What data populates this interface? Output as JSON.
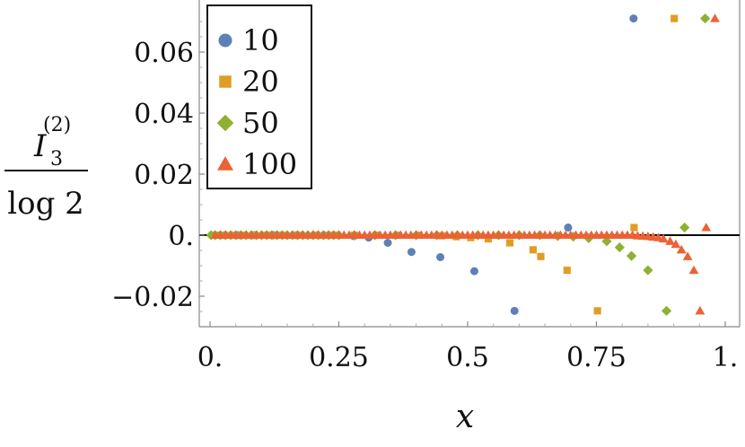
{
  "chart_data": {
    "type": "scatter",
    "xlabel": "x",
    "ylabel": {
      "numerator": "I",
      "numerator_subscript": "3",
      "numerator_superscript": "(2)",
      "denominator": "log 2"
    },
    "xlim": [
      0,
      1
    ],
    "ylim": [
      -0.03,
      0.075
    ],
    "x_ticks": [
      {
        "value": 0,
        "label": "0."
      },
      {
        "value": 0.25,
        "label": "0.25"
      },
      {
        "value": 0.5,
        "label": "0.5"
      },
      {
        "value": 0.75,
        "label": "0.75"
      },
      {
        "value": 1,
        "label": "1."
      }
    ],
    "y_ticks": [
      {
        "value": -0.02,
        "label": "−0.02"
      },
      {
        "value": 0,
        "label": "0."
      },
      {
        "value": 0.02,
        "label": "0.02"
      },
      {
        "value": 0.04,
        "label": "0.04"
      },
      {
        "value": 0.06,
        "label": "0.06"
      }
    ],
    "grid": false,
    "zero_line": true,
    "legend_position": "top-left",
    "series": [
      {
        "name": "10",
        "marker": "circle",
        "color": "#5e81b5",
        "points": [
          [
            0.01,
            0.0
          ],
          [
            0.029,
            0.0
          ],
          [
            0.054,
            0.0
          ],
          [
            0.085,
            0.0
          ],
          [
            0.123,
            0.0
          ],
          [
            0.168,
            0.0
          ],
          [
            0.221,
            0.0
          ],
          [
            0.279,
            -0.0003
          ],
          [
            0.308,
            -0.0008
          ],
          [
            0.345,
            -0.0025
          ],
          [
            0.391,
            -0.0055
          ],
          [
            0.447,
            -0.0072
          ],
          [
            0.513,
            -0.0118
          ],
          [
            0.591,
            -0.0248
          ],
          [
            0.695,
            0.0025
          ],
          [
            0.822,
            0.071
          ]
        ]
      },
      {
        "name": "20",
        "marker": "square",
        "color": "#e19c24",
        "points": [
          [
            0.005,
            0.0
          ],
          [
            0.015,
            0.0
          ],
          [
            0.028,
            0.0
          ],
          [
            0.045,
            0.0
          ],
          [
            0.063,
            0.0
          ],
          [
            0.085,
            0.0
          ],
          [
            0.11,
            0.0
          ],
          [
            0.14,
            0.0
          ],
          [
            0.172,
            0.0
          ],
          [
            0.205,
            0.0
          ],
          [
            0.24,
            0.0
          ],
          [
            0.28,
            0.0
          ],
          [
            0.322,
            0.0
          ],
          [
            0.365,
            0.0
          ],
          [
            0.405,
            0.0
          ],
          [
            0.45,
            -0.0002
          ],
          [
            0.478,
            -0.0005
          ],
          [
            0.506,
            -0.0008
          ],
          [
            0.54,
            -0.0012
          ],
          [
            0.582,
            -0.0025
          ],
          [
            0.627,
            -0.0048
          ],
          [
            0.642,
            -0.007
          ],
          [
            0.693,
            -0.0115
          ],
          [
            0.752,
            -0.0248
          ],
          [
            0.823,
            0.0025
          ],
          [
            0.901,
            0.071
          ]
        ]
      },
      {
        "name": "50",
        "marker": "diamond",
        "color": "#8fb032",
        "points": [
          [
            0.002,
            0.0
          ],
          [
            0.01,
            0.0
          ],
          [
            0.02,
            0.0
          ],
          [
            0.03,
            0.0
          ],
          [
            0.04,
            0.0
          ],
          [
            0.05,
            0.0
          ],
          [
            0.06,
            0.0
          ],
          [
            0.07,
            0.0
          ],
          [
            0.08,
            0.0
          ],
          [
            0.09,
            0.0
          ],
          [
            0.1,
            0.0
          ],
          [
            0.11,
            0.0
          ],
          [
            0.12,
            0.0
          ],
          [
            0.13,
            0.0
          ],
          [
            0.14,
            0.0
          ],
          [
            0.15,
            0.0
          ],
          [
            0.16,
            0.0
          ],
          [
            0.17,
            0.0
          ],
          [
            0.18,
            0.0
          ],
          [
            0.19,
            0.0
          ],
          [
            0.2,
            0.0
          ],
          [
            0.21,
            0.0
          ],
          [
            0.22,
            0.0
          ],
          [
            0.23,
            0.0
          ],
          [
            0.24,
            0.0
          ],
          [
            0.25,
            0.0
          ],
          [
            0.28,
            0.0
          ],
          [
            0.32,
            0.0
          ],
          [
            0.36,
            0.0
          ],
          [
            0.4,
            0.0
          ],
          [
            0.44,
            0.0
          ],
          [
            0.48,
            0.0
          ],
          [
            0.52,
            0.0
          ],
          [
            0.56,
            0.0
          ],
          [
            0.6,
            0.0
          ],
          [
            0.64,
            0.0
          ],
          [
            0.675,
            -0.0003
          ],
          [
            0.705,
            -0.0005
          ],
          [
            0.735,
            -0.001
          ],
          [
            0.77,
            -0.002
          ],
          [
            0.795,
            -0.004
          ],
          [
            0.818,
            -0.0068
          ],
          [
            0.85,
            -0.0115
          ],
          [
            0.886,
            -0.0248
          ],
          [
            0.921,
            0.0025
          ],
          [
            0.961,
            0.071
          ]
        ]
      },
      {
        "name": "100",
        "marker": "triangle",
        "color": "#eb6235",
        "points": [
          [
            0.01,
            0.0
          ],
          [
            0.02,
            0.0
          ],
          [
            0.03,
            0.0
          ],
          [
            0.04,
            0.0
          ],
          [
            0.05,
            0.0
          ],
          [
            0.06,
            0.0
          ],
          [
            0.07,
            0.0
          ],
          [
            0.08,
            0.0
          ],
          [
            0.09,
            0.0
          ],
          [
            0.1,
            0.0
          ],
          [
            0.11,
            0.0
          ],
          [
            0.12,
            0.0
          ],
          [
            0.13,
            0.0
          ],
          [
            0.14,
            0.0
          ],
          [
            0.15,
            0.0
          ],
          [
            0.16,
            0.0
          ],
          [
            0.17,
            0.0
          ],
          [
            0.18,
            0.0
          ],
          [
            0.19,
            0.0
          ],
          [
            0.2,
            0.0
          ],
          [
            0.21,
            0.0
          ],
          [
            0.22,
            0.0
          ],
          [
            0.23,
            0.0
          ],
          [
            0.24,
            0.0
          ],
          [
            0.25,
            0.0
          ],
          [
            0.26,
            0.0
          ],
          [
            0.27,
            0.0
          ],
          [
            0.28,
            0.0
          ],
          [
            0.29,
            0.0
          ],
          [
            0.3,
            0.0
          ],
          [
            0.31,
            0.0
          ],
          [
            0.32,
            0.0
          ],
          [
            0.33,
            0.0
          ],
          [
            0.34,
            0.0
          ],
          [
            0.35,
            0.0
          ],
          [
            0.36,
            0.0
          ],
          [
            0.37,
            0.0
          ],
          [
            0.38,
            0.0
          ],
          [
            0.39,
            0.0
          ],
          [
            0.4,
            0.0
          ],
          [
            0.41,
            0.0
          ],
          [
            0.42,
            0.0
          ],
          [
            0.43,
            0.0
          ],
          [
            0.44,
            0.0
          ],
          [
            0.45,
            0.0
          ],
          [
            0.46,
            0.0
          ],
          [
            0.47,
            0.0
          ],
          [
            0.48,
            0.0
          ],
          [
            0.49,
            0.0
          ],
          [
            0.5,
            0.0
          ],
          [
            0.51,
            0.0
          ],
          [
            0.52,
            0.0
          ],
          [
            0.53,
            0.0
          ],
          [
            0.54,
            0.0
          ],
          [
            0.55,
            0.0
          ],
          [
            0.56,
            0.0
          ],
          [
            0.57,
            0.0
          ],
          [
            0.58,
            0.0
          ],
          [
            0.59,
            0.0
          ],
          [
            0.6,
            0.0
          ],
          [
            0.61,
            0.0
          ],
          [
            0.62,
            0.0
          ],
          [
            0.63,
            0.0
          ],
          [
            0.64,
            0.0
          ],
          [
            0.65,
            0.0
          ],
          [
            0.66,
            0.0
          ],
          [
            0.67,
            0.0
          ],
          [
            0.68,
            0.0
          ],
          [
            0.69,
            0.0
          ],
          [
            0.7,
            0.0
          ],
          [
            0.71,
            0.0
          ],
          [
            0.72,
            0.0
          ],
          [
            0.73,
            0.0
          ],
          [
            0.74,
            0.0
          ],
          [
            0.75,
            0.0
          ],
          [
            0.76,
            0.0
          ],
          [
            0.77,
            0.0
          ],
          [
            0.78,
            0.0
          ],
          [
            0.79,
            0.0
          ],
          [
            0.8,
            0.0
          ],
          [
            0.81,
            0.0
          ],
          [
            0.82,
            0.0
          ],
          [
            0.83,
            -0.0002
          ],
          [
            0.84,
            -0.0003
          ],
          [
            0.85,
            -0.0004
          ],
          [
            0.86,
            -0.0006
          ],
          [
            0.87,
            -0.0008
          ],
          [
            0.88,
            -0.0012
          ],
          [
            0.893,
            -0.002
          ],
          [
            0.904,
            -0.003
          ],
          [
            0.915,
            -0.0048
          ],
          [
            0.927,
            -0.007
          ],
          [
            0.939,
            -0.0115
          ],
          [
            0.951,
            -0.0248
          ],
          [
            0.963,
            0.0025
          ],
          [
            0.98,
            0.071
          ]
        ]
      }
    ]
  }
}
